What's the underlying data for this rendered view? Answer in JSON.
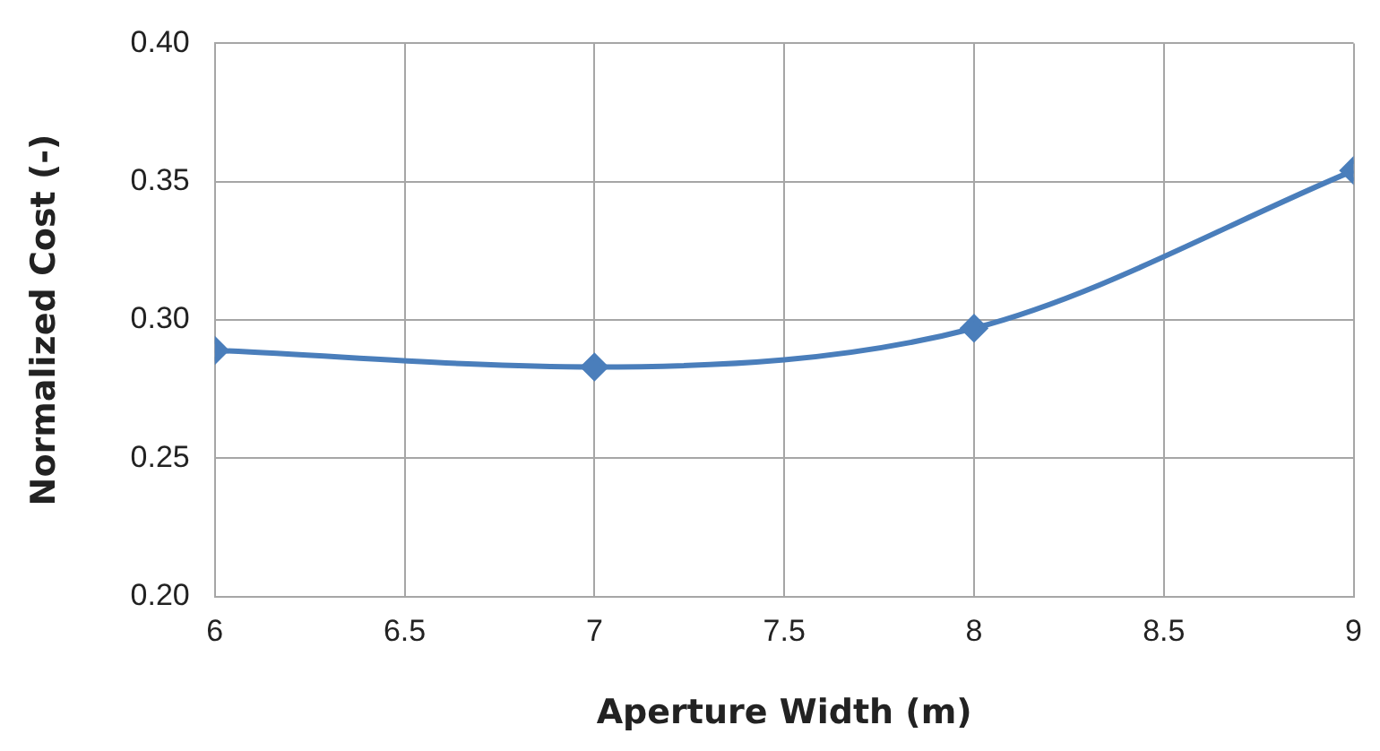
{
  "chart_data": {
    "type": "line",
    "xlabel": "Aperture Width (m)",
    "ylabel": "Normalized Cost (-)",
    "x": [
      6,
      7,
      8,
      9
    ],
    "series": [
      {
        "color": "#4a7ebb",
        "values": [
          0.289,
          0.283,
          0.297,
          0.354
        ]
      }
    ],
    "xlim": [
      6,
      9
    ],
    "xticks": [
      6,
      6.5,
      7,
      7.5,
      8,
      8.5,
      9
    ],
    "ylim": [
      0.2,
      0.4
    ],
    "yticks": [
      {
        "value": 0.2,
        "label": "0.20"
      },
      {
        "value": 0.25,
        "label": "0.25"
      },
      {
        "value": 0.3,
        "label": "0.30"
      },
      {
        "value": 0.35,
        "label": "0.35"
      },
      {
        "value": 0.4,
        "label": "0.40"
      }
    ],
    "grid": true,
    "marker": "diamond",
    "line_style": "solid"
  }
}
